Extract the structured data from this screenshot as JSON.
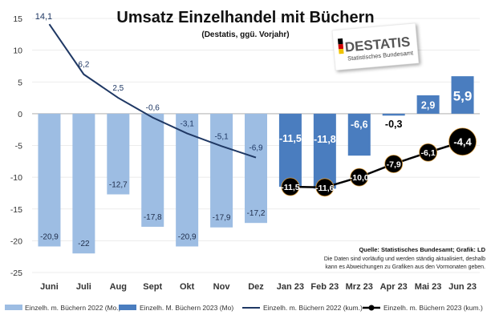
{
  "chart_data": {
    "type": "bar",
    "title": "Umsatz Einzelhandel mit Büchern",
    "subtitle": "(Destatis, ggü. Vorjahr)",
    "categories": [
      "Juni",
      "Juli",
      "Aug",
      "Sept",
      "Okt",
      "Nov",
      "Dez",
      "Jan 23",
      "Feb 23",
      "Mrz 23",
      "Apr 23",
      "Mai 23",
      "Jun 23"
    ],
    "ylim": [
      -25,
      15
    ],
    "yticks": [
      15,
      10,
      5,
      0,
      -5,
      -10,
      -15,
      -20,
      -25
    ],
    "grid": true,
    "series": [
      {
        "name": "Einzelh. m. Büchern 2022 (Mo.)",
        "type": "bar",
        "color": "#9dbde3",
        "values": [
          -20.9,
          -22,
          -12.7,
          -17.8,
          -20.9,
          -17.9,
          -17.2,
          null,
          null,
          null,
          null,
          null,
          null
        ],
        "labels": [
          "-20,9",
          "-22",
          "-12,7",
          "-17,8",
          "-20,9",
          "-17,9",
          "-17,2",
          "",
          "",
          "",
          "",
          "",
          ""
        ]
      },
      {
        "name": "Einzelh. M. Büchern 2023 (Mo)",
        "type": "bar",
        "color": "#4a7dbf",
        "values": [
          null,
          null,
          null,
          null,
          null,
          null,
          null,
          -11.5,
          -11.8,
          -6.6,
          -0.3,
          2.9,
          5.9
        ],
        "labels": [
          "",
          "",
          "",
          "",
          "",
          "",
          "",
          "-11,5",
          "-11,8",
          "-6,6",
          "-0,3",
          "2,9",
          "5,9"
        ]
      },
      {
        "name": "Einzelh. m. Büchern 2022 (kum.)",
        "type": "line",
        "color": "#1f3864",
        "values": [
          14.1,
          6.2,
          2.5,
          -0.6,
          -3.1,
          -5.1,
          -6.9,
          null,
          null,
          null,
          null,
          null,
          null
        ],
        "labels": [
          "14,1",
          "6,2",
          "2,5",
          "-0,6",
          "-3,1",
          "-5,1",
          "-6,9",
          "",
          "",
          "",
          "",
          "",
          ""
        ]
      },
      {
        "name": "Einzelh. m. Büchern 2023 (kum.)",
        "type": "line",
        "color": "#000000",
        "values": [
          null,
          null,
          null,
          null,
          null,
          null,
          null,
          -11.5,
          -11.6,
          -10.0,
          -7.9,
          -6.1,
          -4.4
        ],
        "labels": [
          "",
          "",
          "",
          "",
          "",
          "",
          "",
          "-11,5",
          "-11,6",
          "-10,0",
          "-7,9",
          "-6,1",
          "-4,4"
        ]
      }
    ]
  },
  "logo": {
    "text": "DESTATIS",
    "subtext": "Statistisches Bundesamt"
  },
  "source": {
    "line1": "Quelle: Statistisches  Bundesamt; Grafik: LD",
    "line2": "Die Daten sind vorläufig und werden ständig aktualisiert, deshalb",
    "line3": "kann es Abweichungen zu Grafiken aus den Vormonaten geben."
  },
  "colors": {
    "gold": "#d99a3a"
  }
}
